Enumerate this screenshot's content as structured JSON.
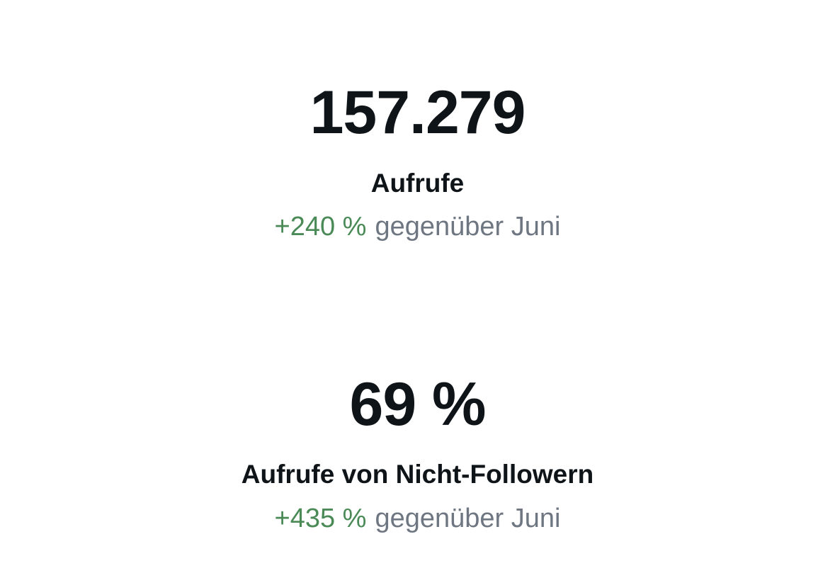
{
  "stats": [
    {
      "value": "157.279",
      "label": "Aufrufe",
      "change": "+240 %",
      "comparison": "gegenüber Juni"
    },
    {
      "value": "69 %",
      "label": "Aufrufe von Nicht-Followern",
      "change": "+435 %",
      "comparison": "gegenüber Juni"
    }
  ]
}
